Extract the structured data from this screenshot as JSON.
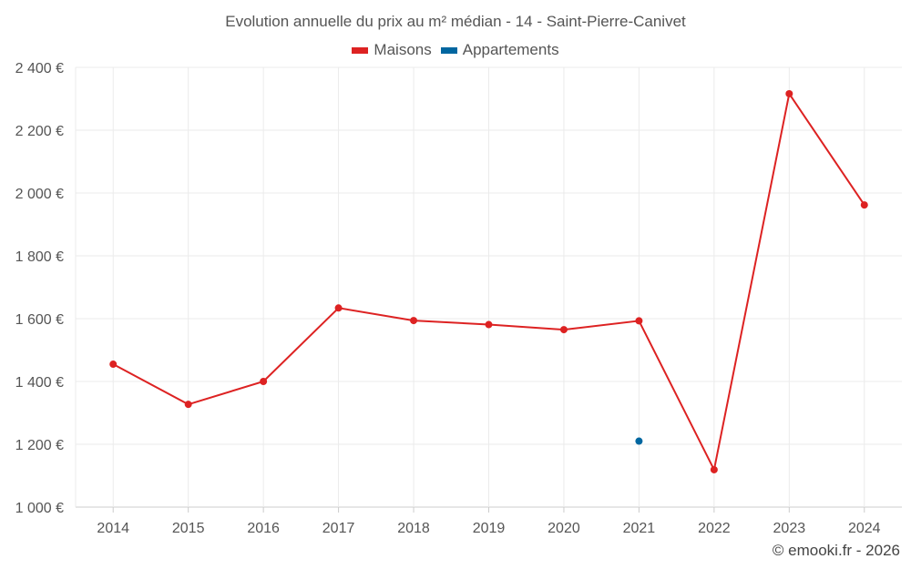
{
  "chart_data": {
    "type": "line",
    "title": "Evolution annuelle du prix au m² médian - 14 - Saint-Pierre-Canivet",
    "categories": [
      "2014",
      "2015",
      "2016",
      "2017",
      "2018",
      "2019",
      "2020",
      "2021",
      "2022",
      "2023",
      "2024"
    ],
    "series": [
      {
        "name": "Maisons",
        "color": "#dd2222",
        "values": [
          1455,
          1327,
          1400,
          1634,
          1594,
          1581,
          1565,
          1593,
          1119,
          2316,
          1962
        ]
      },
      {
        "name": "Appartements",
        "color": "#0066a0",
        "values": [
          null,
          null,
          null,
          null,
          null,
          null,
          null,
          1210,
          null,
          null,
          null
        ]
      }
    ],
    "ylim": [
      1000,
      2400
    ],
    "yticks": [
      1000,
      1200,
      1400,
      1600,
      1800,
      2000,
      2200,
      2400
    ],
    "ytick_labels": [
      "1 000 €",
      "1 200 €",
      "1 400 €",
      "1 600 €",
      "1 800 €",
      "2 000 €",
      "2 200 €",
      "2 400 €"
    ],
    "xlabel": "",
    "ylabel": "",
    "grid": true,
    "legend_position": "top-center"
  },
  "credit": "© emooki.fr - 2026"
}
